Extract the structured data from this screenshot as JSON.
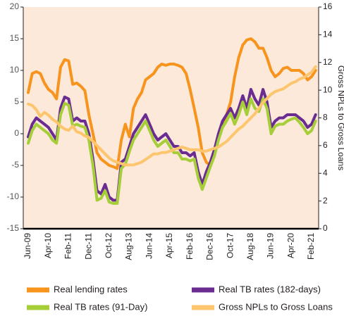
{
  "chart_data": {
    "type": "line",
    "categories": [
      "Jun-09",
      null,
      null,
      null,
      null,
      "Apr-10",
      null,
      null,
      null,
      null,
      "Feb-11",
      null,
      null,
      null,
      null,
      "Dec-11",
      null,
      null,
      null,
      null,
      "Oct-12",
      null,
      null,
      null,
      null,
      "Aug-13",
      null,
      null,
      null,
      null,
      "Jun-14",
      null,
      null,
      null,
      null,
      "Apr-15",
      null,
      null,
      null,
      null,
      "Feb-16",
      null,
      null,
      null,
      null,
      "Dec-16",
      null,
      null,
      null,
      null,
      "Oct-17",
      null,
      null,
      null,
      null,
      "Aug-18",
      null,
      null,
      null,
      null,
      "Jun-19",
      null,
      null,
      null,
      null,
      "Apr-20",
      null,
      null,
      null,
      null,
      "Feb-21",
      null
    ],
    "ylim": [
      -15,
      20
    ],
    "yticks": [
      -15,
      -10,
      -5,
      0,
      5,
      10,
      15,
      20
    ],
    "y2lim": [
      0,
      16
    ],
    "y2ticks": [
      0,
      2,
      4,
      6,
      8,
      10,
      12,
      14,
      16
    ],
    "y2label": "Gross NPLs to Gross Loans",
    "background": "#fde9d9",
    "series": [
      {
        "name": "Real lending rates",
        "color": "#f7941d",
        "values": [
          6.5,
          9.5,
          9.8,
          9.5,
          8,
          7,
          6.5,
          5.5,
          10.5,
          11.7,
          11.5,
          7.8,
          8,
          7.5,
          6.8,
          3,
          0,
          -3,
          -4,
          -4.5,
          -5,
          -5.2,
          -5.5,
          -1,
          1.5,
          -0.5,
          4,
          5.5,
          6.5,
          8.5,
          9,
          9.5,
          10.5,
          11,
          10.8,
          11,
          11,
          10.8,
          10.5,
          9.5,
          7,
          4,
          1,
          -3,
          -4.5,
          -5,
          -3.5,
          -0.5,
          1.5,
          3,
          5,
          9,
          12,
          14,
          14.8,
          15,
          14.5,
          13.5,
          13.5,
          12,
          10,
          9,
          9.5,
          10.3,
          10.5,
          10,
          10,
          10,
          9.5,
          8.5,
          9,
          10
        ]
      },
      {
        "name": "Real TB rates (182-days)",
        "color": "#6a2c91",
        "values": [
          -0.5,
          1.5,
          2.5,
          2,
          1.5,
          1,
          0,
          -1,
          4,
          5.8,
          5.5,
          2,
          2.5,
          2,
          2,
          0,
          -4,
          -9,
          -9.5,
          -8,
          -10,
          -10.5,
          -10.5,
          -4.5,
          -4,
          -2,
          0,
          1,
          2,
          3,
          1.5,
          0,
          -1,
          -0.5,
          0,
          -1,
          -2,
          -2,
          -3,
          -3,
          -3.5,
          -3,
          -6,
          -8,
          -6,
          -4.5,
          -2.5,
          0,
          2,
          3,
          4,
          2.5,
          4,
          6,
          4,
          7,
          5.5,
          4.5,
          7,
          5,
          1,
          2,
          2.5,
          2.5,
          3,
          3,
          3,
          2.5,
          2,
          1,
          1.5,
          3
        ]
      },
      {
        "name": "Real TB rates (91-Day)",
        "color": "#a6ce39",
        "values": [
          -1.5,
          0.5,
          1.5,
          1,
          0.5,
          0,
          -1,
          -1.5,
          3,
          4.8,
          4.5,
          1.2,
          1.5,
          1.2,
          1,
          -1,
          -5,
          -10.5,
          -10.2,
          -9,
          -10.8,
          -11,
          -11,
          -5.5,
          -4.8,
          -2.8,
          -1,
          0,
          1,
          2,
          0.5,
          -1,
          -2,
          -1.5,
          -1,
          -2,
          -3,
          -3,
          -4,
          -4,
          -4.3,
          -4,
          -7,
          -8.8,
          -7,
          -5.2,
          -3.5,
          -1,
          1,
          2,
          3.2,
          1.5,
          3,
          5,
          3,
          5.5,
          4,
          3.5,
          5.5,
          4,
          0,
          1.2,
          1.5,
          1.5,
          2,
          2.3,
          2.5,
          1.8,
          1,
          0,
          0.5,
          2
        ]
      },
      {
        "name": "Gross NPLs to Gross Loans",
        "color": "#fdc66e",
        "axis": "y2",
        "values": [
          9.0,
          8.9,
          8.6,
          8.1,
          8.4,
          8.2,
          7.9,
          7.7,
          7.4,
          7.2,
          7.1,
          7.4,
          7.0,
          6.9,
          6.7,
          6.6,
          6.3,
          6.0,
          5.7,
          5.4,
          5.1,
          4.9,
          4.8,
          4.7,
          4.6,
          4.6,
          4.6,
          4.7,
          4.8,
          5.0,
          5.2,
          5.4,
          5.4,
          5.5,
          5.5,
          5.6,
          5.7,
          5.8,
          5.9,
          5.8,
          5.7,
          5.7,
          5.7,
          5.6,
          5.6,
          5.7,
          5.8,
          5.9,
          6.1,
          6.3,
          6.6,
          6.9,
          7.2,
          7.4,
          7.7,
          8.0,
          8.3,
          8.7,
          9.1,
          9.4,
          9.7,
          9.9,
          10.0,
          10.1,
          10.3,
          10.5,
          10.6,
          10.8,
          10.9,
          11.1,
          11.3,
          11.7
        ]
      }
    ]
  }
}
